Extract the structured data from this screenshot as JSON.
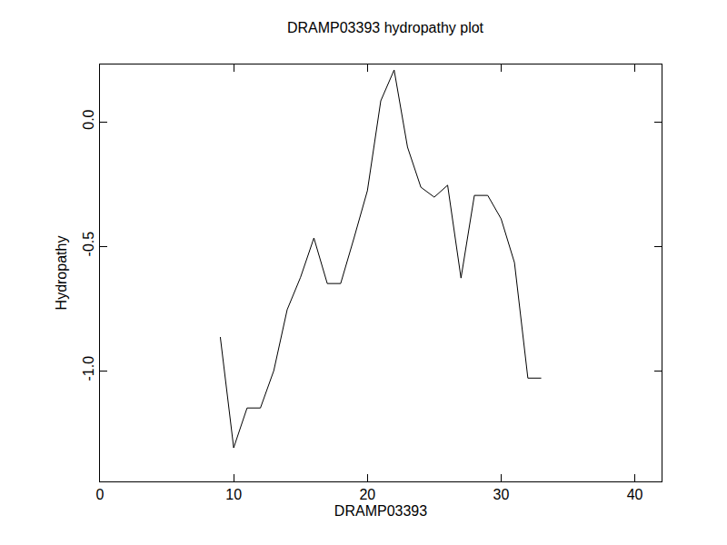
{
  "chart_data": {
    "type": "line",
    "title": "DRAMP03393 hydropathy plot",
    "x_label": "DRAMP03393",
    "y_label": "Hydropathy",
    "x": [
      9,
      10,
      11,
      12,
      13,
      14,
      15,
      16,
      17,
      18,
      19,
      20,
      21,
      22,
      23,
      24,
      25,
      26,
      27,
      28,
      29,
      30,
      31,
      32,
      33
    ],
    "values": [
      -0.865,
      -1.31,
      -1.15,
      -1.15,
      -1.0,
      -0.755,
      -0.625,
      -0.467,
      -0.65,
      -0.65,
      -0.467,
      -0.277,
      0.084,
      0.208,
      -0.102,
      -0.263,
      -0.303,
      -0.255,
      -0.628,
      -0.296,
      -0.296,
      -0.39,
      -0.566,
      -1.03,
      -1.03
    ],
    "color": "#000000",
    "xlim": [
      0,
      42
    ],
    "xticks": [
      0,
      10,
      20,
      30,
      40
    ],
    "ylim": [
      -1.445,
      0.23
    ],
    "yticks": [
      {
        "value": -1.0,
        "label": "-1.0"
      },
      {
        "value": -0.5,
        "label": "-0.5"
      },
      {
        "value": 0.0,
        "label": "0.0"
      }
    ],
    "grid": false
  }
}
